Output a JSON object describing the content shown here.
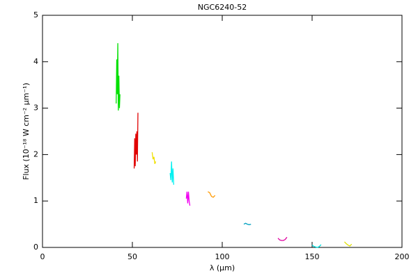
{
  "chart_data": {
    "type": "line",
    "title": "NGC6240-52",
    "x_label": "λ (μm)",
    "y_label": "Flux (10⁻¹⁸ W cm⁻² μm⁻¹)",
    "xlim": [
      0,
      200
    ],
    "xticks": [
      0,
      50,
      100,
      150,
      200
    ],
    "ylim": [
      0,
      5
    ],
    "yticks": [
      0,
      1,
      2,
      3,
      4,
      5
    ],
    "series": [
      {
        "color": "#00e000",
        "x": [
          41,
          41.3,
          41.6,
          41.9,
          42.2,
          42.5,
          42.8,
          43.1
        ],
        "values": [
          3.1,
          4.05,
          3.3,
          4.4,
          2.95,
          3.7,
          3.0,
          3.3
        ]
      },
      {
        "color": "#e00000",
        "x": [
          51,
          51.3,
          51.6,
          51.9,
          52.2,
          52.5,
          52.8,
          53.1
        ],
        "values": [
          1.7,
          2.35,
          1.75,
          2.45,
          2.0,
          2.5,
          1.85,
          2.9
        ]
      },
      {
        "color": "#f0e000",
        "x": [
          61,
          61.5,
          62,
          62.5,
          63
        ],
        "values": [
          2.05,
          1.9,
          1.95,
          1.8,
          1.85
        ]
      },
      {
        "color": "#00f0f0",
        "x": [
          71,
          71.4,
          71.8,
          72.2,
          72.6,
          73
        ],
        "values": [
          1.6,
          1.45,
          1.85,
          1.4,
          1.7,
          1.35
        ]
      },
      {
        "color": "#f000f0",
        "x": [
          80,
          80.4,
          80.8,
          81.2,
          81.6,
          82
        ],
        "values": [
          1.05,
          1.2,
          0.95,
          1.2,
          1.0,
          0.9
        ]
      },
      {
        "color": "#ff9900",
        "x": [
          92,
          93,
          94,
          95,
          96
        ],
        "values": [
          1.2,
          1.18,
          1.1,
          1.08,
          1.12
        ]
      },
      {
        "color": "#00a0c0",
        "x": [
          112,
          113,
          114,
          115,
          116
        ],
        "values": [
          0.5,
          0.52,
          0.5,
          0.49,
          0.5
        ]
      },
      {
        "color": "#e000a0",
        "x": [
          131,
          132,
          133,
          134,
          135,
          136
        ],
        "values": [
          0.2,
          0.16,
          0.15,
          0.15,
          0.17,
          0.22
        ]
      },
      {
        "color": "#00e0e0",
        "x": [
          150,
          151,
          152,
          153,
          154,
          155
        ],
        "values": [
          0.05,
          0.02,
          0.01,
          0.0,
          0.02,
          0.06
        ]
      },
      {
        "color": "#e0e000",
        "x": [
          168,
          169,
          170,
          171,
          172
        ],
        "values": [
          0.12,
          0.08,
          0.05,
          0.03,
          0.07
        ]
      }
    ]
  }
}
